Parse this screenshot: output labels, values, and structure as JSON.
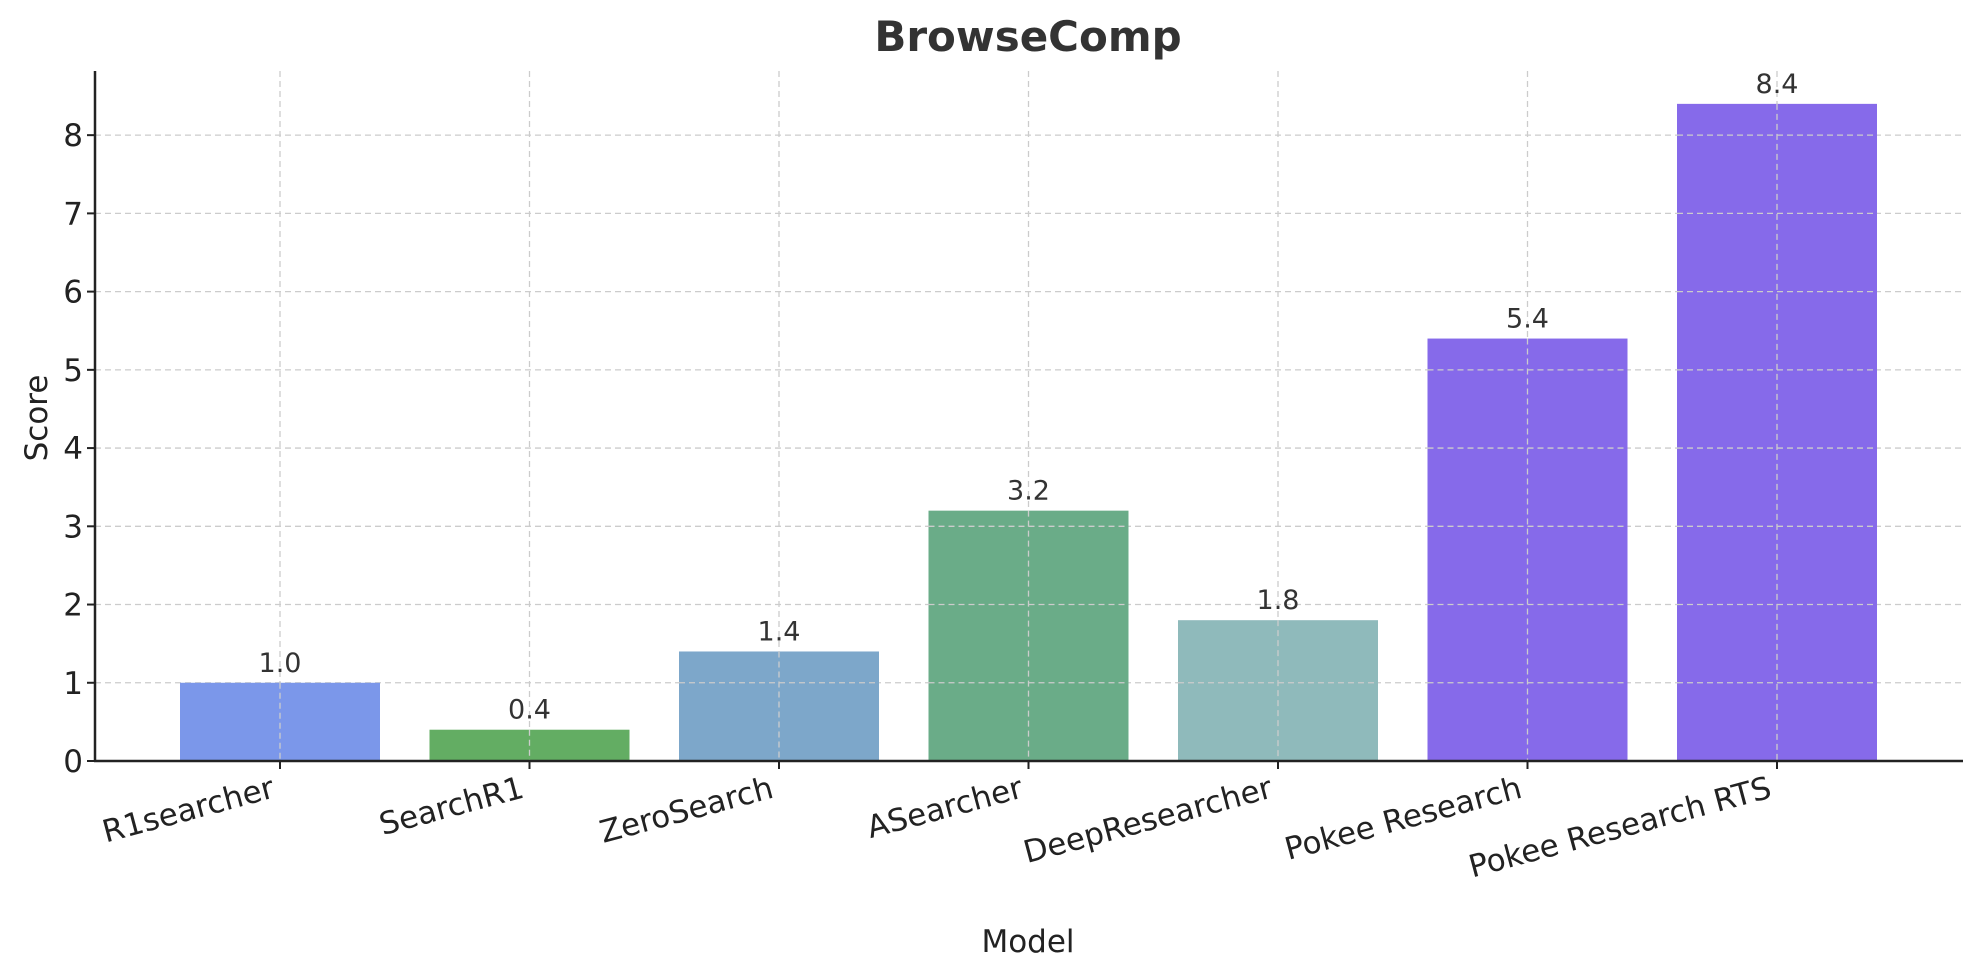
{
  "chart_data": {
    "type": "bar",
    "title": "BrowseComp",
    "xlabel": "Model",
    "ylabel": "Score",
    "categories": [
      "R1searcher",
      "SearchR1",
      "ZeroSearch",
      "ASearcher",
      "DeepResearcher",
      "Pokee Research",
      "Pokee Research RTS"
    ],
    "values": [
      1.0,
      0.4,
      1.4,
      3.2,
      1.8,
      5.4,
      8.4
    ],
    "value_labels": [
      "1.0",
      "0.4",
      "1.4",
      "3.2",
      "1.8",
      "5.4",
      "8.4"
    ],
    "colors": [
      "#7b97ea",
      "#63ad63",
      "#7da7ca",
      "#6aac88",
      "#8fbabb",
      "#866aea",
      "#866aea"
    ],
    "yticks": [
      "0",
      "1",
      "2",
      "3",
      "4",
      "5",
      "6",
      "7",
      "8"
    ],
    "ylim": [
      0,
      8.82
    ],
    "grid": true,
    "legend": "none"
  }
}
